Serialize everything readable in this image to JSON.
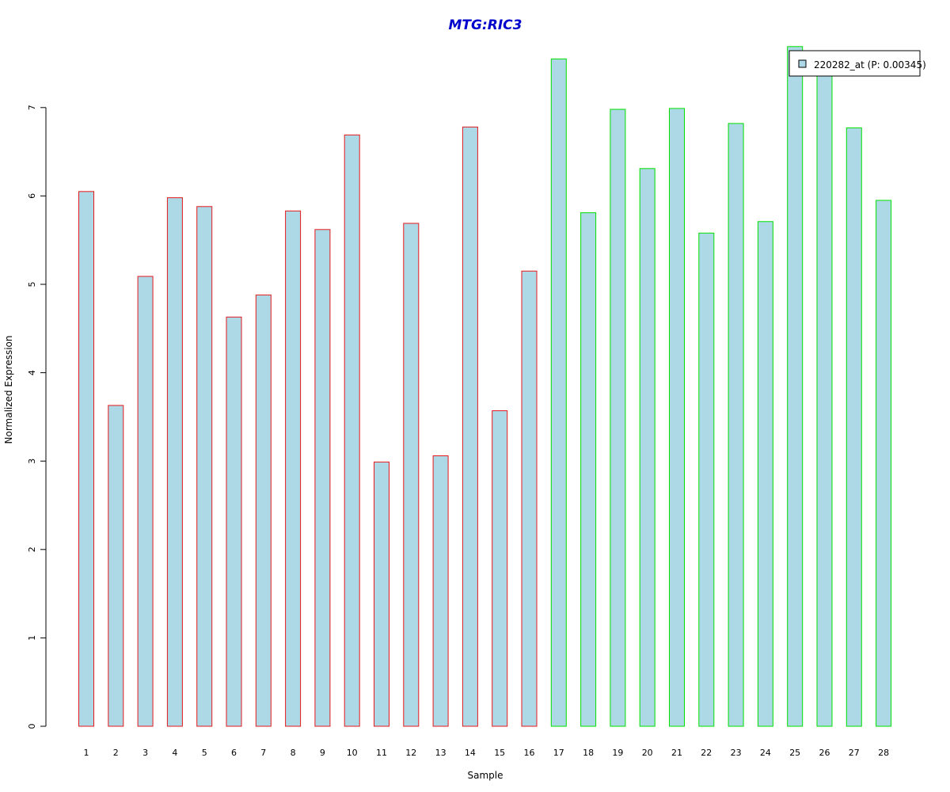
{
  "chart_data": {
    "type": "bar",
    "title": "MTG:RIC3",
    "title_color": "#0000CC",
    "xlabel": "Sample",
    "ylabel": "Normalized Expression",
    "ylim": [
      0,
      7.7
    ],
    "yticks": [
      0,
      1,
      2,
      3,
      4,
      5,
      6,
      7
    ],
    "grid": false,
    "legend_position": "top-right",
    "fill_color": "#ADD8E6",
    "categories": [
      "1",
      "2",
      "3",
      "4",
      "5",
      "6",
      "7",
      "8",
      "9",
      "10",
      "11",
      "12",
      "13",
      "14",
      "15",
      "16",
      "17",
      "18",
      "19",
      "20",
      "21",
      "22",
      "23",
      "24",
      "25",
      "26",
      "27",
      "28"
    ],
    "series": [
      {
        "name": "220282_at (P: 0.00345)",
        "values": [
          6.05,
          3.63,
          5.09,
          5.98,
          5.88,
          4.63,
          4.88,
          5.83,
          5.62,
          6.69,
          2.99,
          5.69,
          3.06,
          6.78,
          3.57,
          5.15,
          7.55,
          5.81,
          6.98,
          6.31,
          6.99,
          5.58,
          6.82,
          5.71,
          7.69,
          7.4,
          6.77,
          5.95
        ]
      }
    ],
    "groups": [
      {
        "from": 1,
        "to": 16,
        "border_color": "#E41A1C"
      },
      {
        "from": 17,
        "to": 28,
        "border_color": "#00E000"
      }
    ]
  }
}
